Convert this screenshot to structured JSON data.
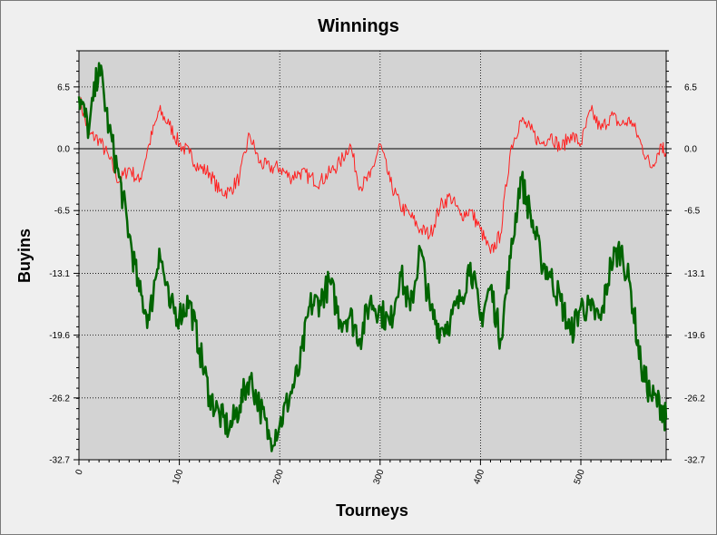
{
  "chart_data": {
    "type": "line",
    "title": "Winnings",
    "xlabel": "Tourneys",
    "ylabel": "Buyins",
    "xlim": [
      0,
      585
    ],
    "ylim": [
      -32.7,
      10.3
    ],
    "x_ticks": [
      0,
      100,
      200,
      300,
      400,
      500
    ],
    "x_tick_labels": [
      "0",
      "100",
      "200",
      "300",
      "400",
      "500"
    ],
    "y_ticks": [
      6.5,
      0.0,
      -6.5,
      -13.1,
      -19.6,
      -26.2,
      -32.7
    ],
    "y_tick_labels": [
      "6.5",
      "0.0",
      "-6.5",
      "-13.1",
      "-19.6",
      "-26.2",
      "-32.7"
    ],
    "grid": true,
    "background": "#d3d3d3",
    "series": [
      {
        "color": "#ff2020",
        "x": [
          0,
          10,
          20,
          30,
          40,
          50,
          60,
          70,
          80,
          90,
          100,
          110,
          120,
          130,
          140,
          150,
          160,
          170,
          180,
          190,
          200,
          210,
          220,
          230,
          240,
          250,
          260,
          270,
          280,
          290,
          300,
          310,
          320,
          330,
          340,
          350,
          360,
          370,
          380,
          390,
          400,
          410,
          420,
          430,
          440,
          450,
          460,
          470,
          480,
          490,
          500,
          510,
          520,
          530,
          540,
          550,
          560,
          570,
          580,
          585
        ],
        "values": [
          5.5,
          1.5,
          1.0,
          -1.0,
          -3.5,
          -2.0,
          -3.5,
          0.5,
          4.0,
          2.5,
          0.5,
          -0.5,
          -2.0,
          -2.5,
          -4.5,
          -4.5,
          -3.0,
          1.5,
          -1.5,
          -2.0,
          -2.0,
          -3.0,
          -2.5,
          -3.0,
          -3.5,
          -2.5,
          -1.5,
          0.5,
          -4.0,
          -3.0,
          0.5,
          -3.5,
          -6.0,
          -7.0,
          -8.5,
          -9.0,
          -6.0,
          -5.0,
          -7.0,
          -6.5,
          -8.5,
          -11.0,
          -9.0,
          0.0,
          3.0,
          2.0,
          0.5,
          1.5,
          0.0,
          1.5,
          0.5,
          4.0,
          2.0,
          3.5,
          2.5,
          3.0,
          0.5,
          -2.0,
          0.5,
          -0.5
        ]
      },
      {
        "color": "#006400",
        "x": [
          0,
          10,
          20,
          30,
          40,
          50,
          60,
          70,
          80,
          90,
          100,
          110,
          120,
          130,
          140,
          150,
          160,
          170,
          180,
          190,
          200,
          210,
          220,
          230,
          240,
          250,
          260,
          270,
          280,
          290,
          300,
          310,
          320,
          330,
          340,
          350,
          360,
          370,
          380,
          390,
          400,
          410,
          420,
          430,
          440,
          450,
          460,
          470,
          480,
          490,
          500,
          510,
          520,
          530,
          540,
          550,
          560,
          570,
          580,
          585
        ],
        "values": [
          5.5,
          2.0,
          9.0,
          2.0,
          -3.0,
          -9.0,
          -15.0,
          -18.0,
          -10.5,
          -16.5,
          -17.5,
          -16.0,
          -21.0,
          -26.0,
          -28.0,
          -29.5,
          -27.0,
          -24.0,
          -27.0,
          -30.5,
          -29.0,
          -26.0,
          -23.0,
          -16.5,
          -16.0,
          -14.0,
          -18.0,
          -17.5,
          -20.0,
          -16.0,
          -17.0,
          -18.5,
          -13.0,
          -17.0,
          -10.5,
          -17.0,
          -19.0,
          -18.0,
          -16.0,
          -12.0,
          -18.0,
          -14.5,
          -20.0,
          -11.5,
          -3.0,
          -7.0,
          -11.5,
          -13.5,
          -16.0,
          -19.5,
          -16.5,
          -17.0,
          -18.0,
          -12.0,
          -10.5,
          -15.0,
          -23.0,
          -26.0,
          -27.0,
          -28.5
        ]
      }
    ]
  }
}
